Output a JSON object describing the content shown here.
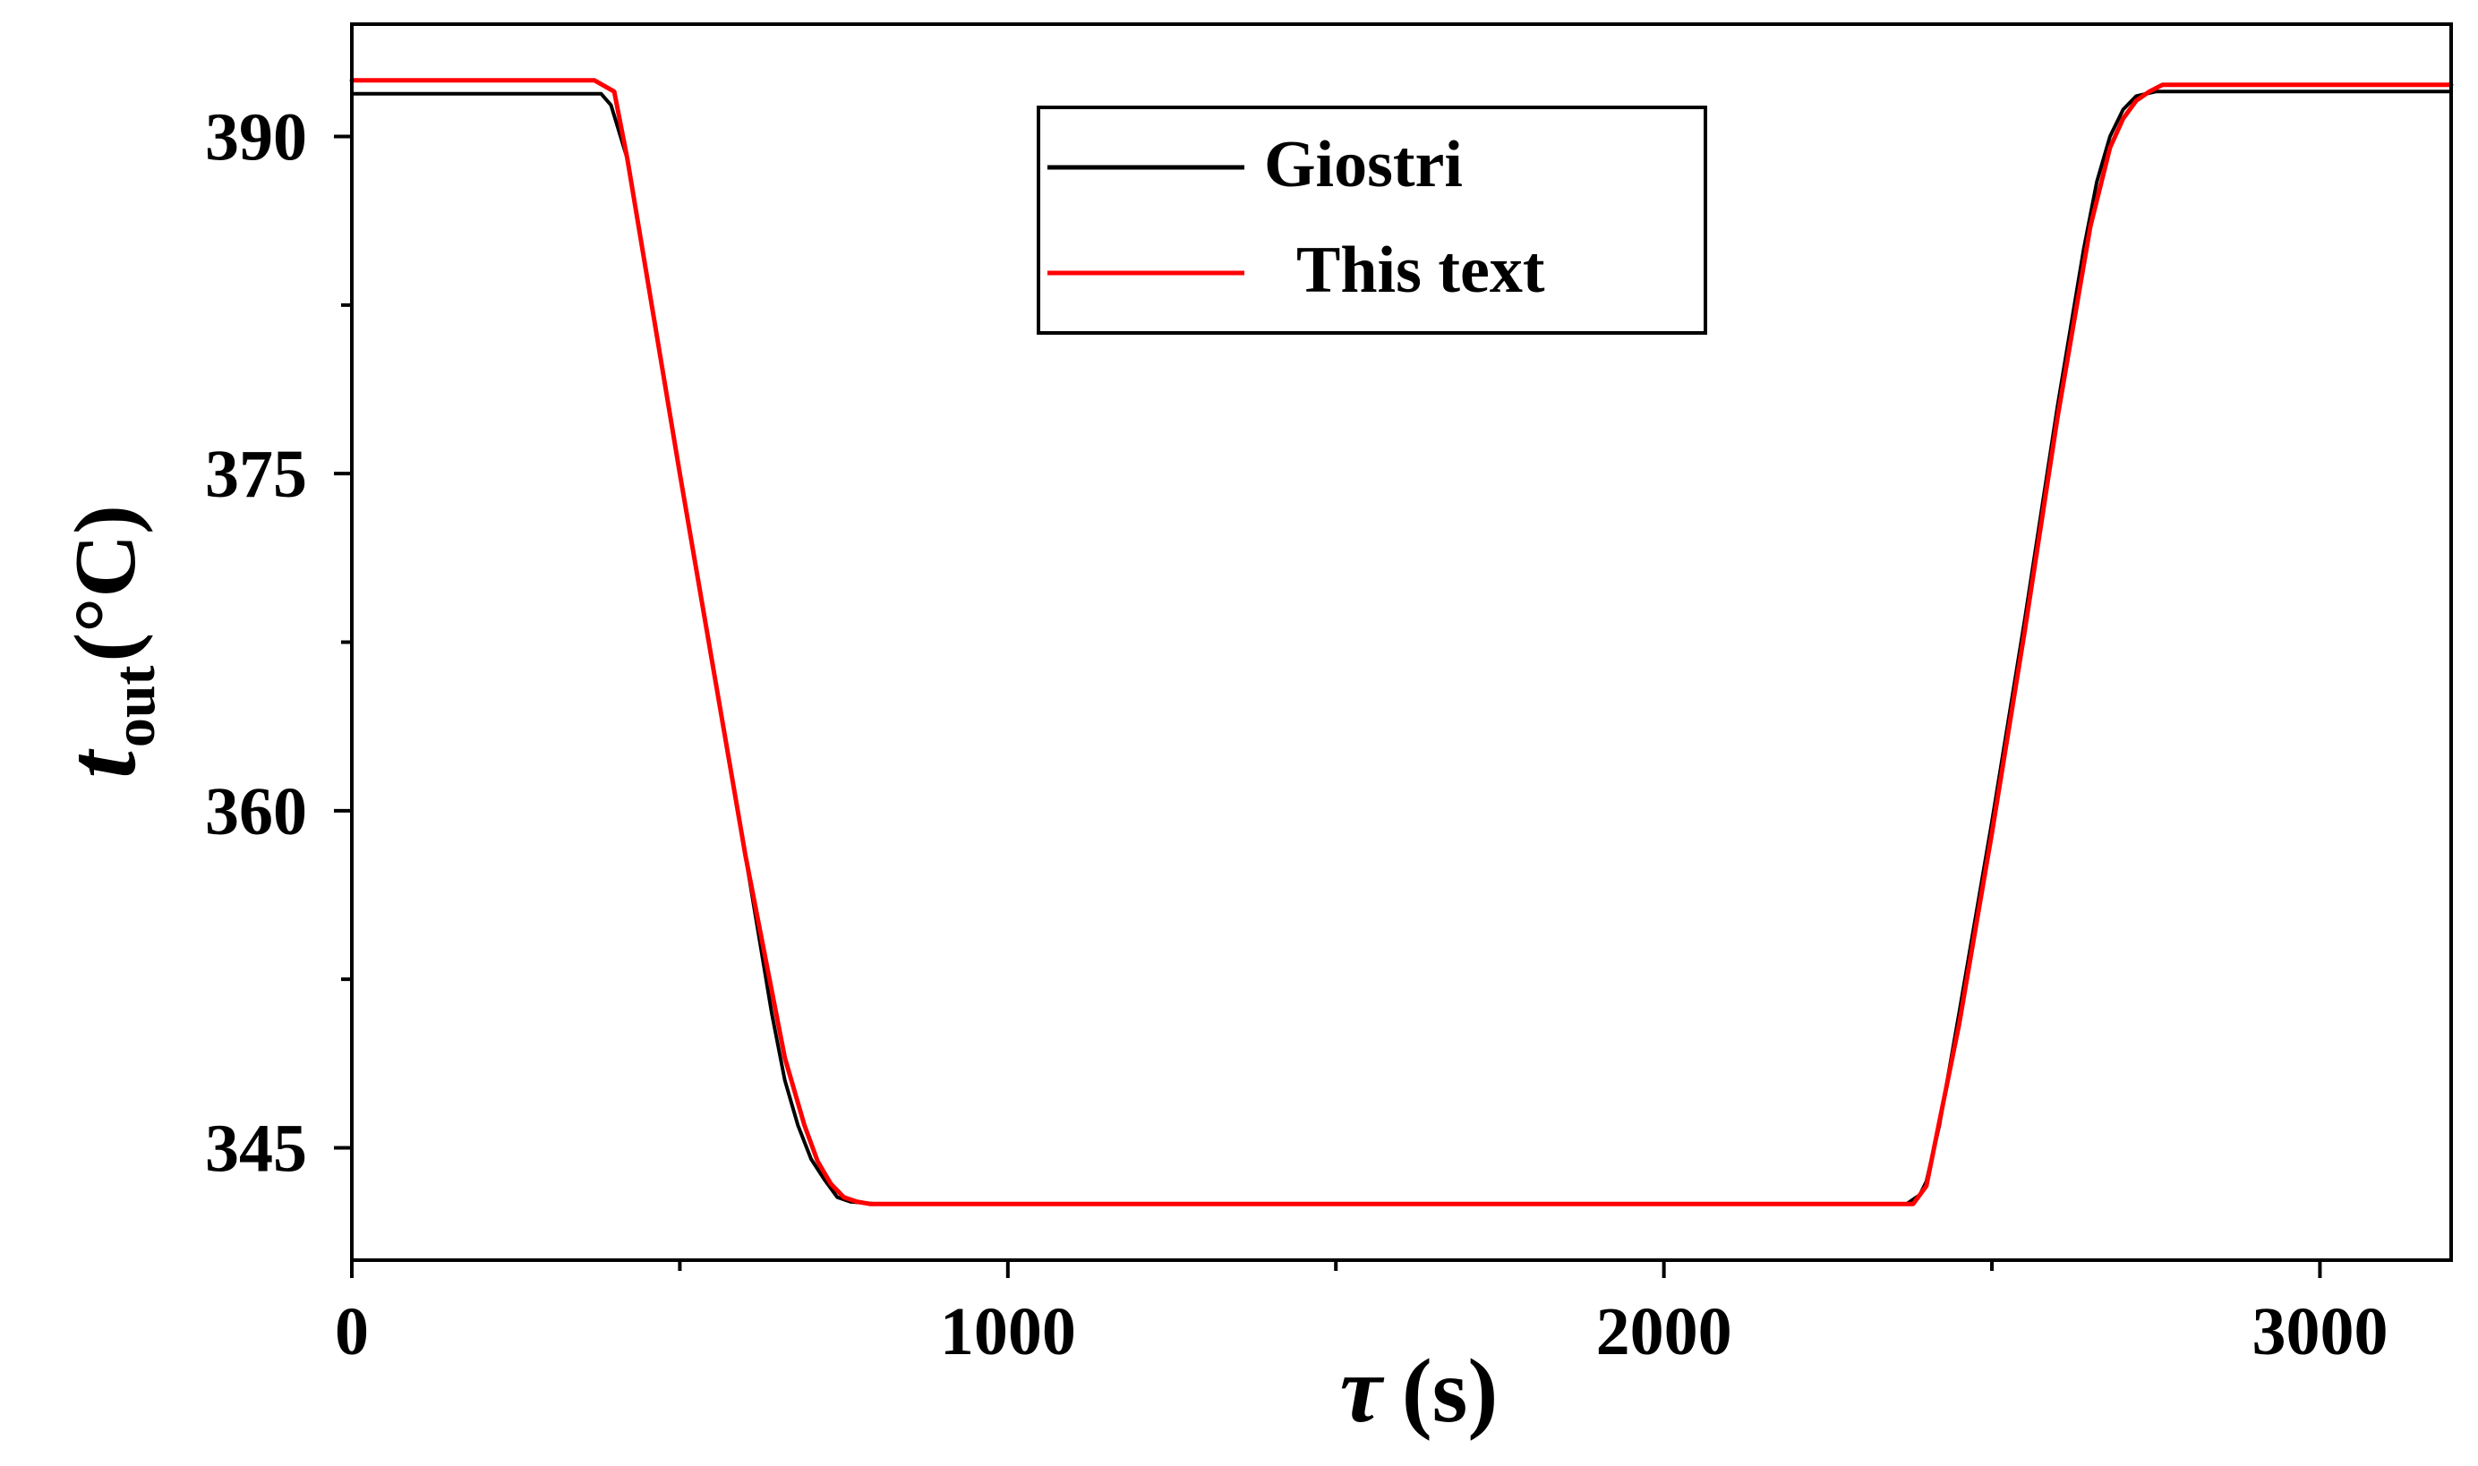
{
  "chart_data": {
    "type": "line",
    "title": "",
    "xlabel": {
      "symbol": "τ",
      "unit": "(s)"
    },
    "ylabel": {
      "symbol": "t",
      "subscript": "out",
      "unit": "(°C)"
    },
    "xlim": [
      0,
      3200
    ],
    "ylim": [
      340,
      395
    ],
    "x_ticks_major": [
      0,
      1000,
      2000,
      3000
    ],
    "x_ticks_minor": [
      500,
      1500,
      2500
    ],
    "x_tick_labels": [
      "0",
      "1000",
      "2000",
      "3000"
    ],
    "y_ticks_major": [
      345,
      360,
      375,
      390
    ],
    "y_ticks_minor": [
      352.5,
      367.5,
      382.5
    ],
    "y_tick_labels": [
      "345",
      "360",
      "375",
      "390"
    ],
    "grid": false,
    "legend": {
      "position": "top-center",
      "entries": [
        "Giostri",
        "This text"
      ]
    },
    "series": [
      {
        "name": "Giostri",
        "color": "#000000",
        "x": [
          0,
          380,
          395,
          420,
          500,
          600,
          640,
          660,
          680,
          700,
          720,
          740,
          760,
          800,
          1500,
          2300,
          2370,
          2390,
          2400,
          2420,
          2450,
          2500,
          2550,
          2600,
          2640,
          2660,
          2680,
          2700,
          2720,
          2750,
          2800,
          3200
        ],
        "y": [
          391.9,
          391.9,
          391.4,
          389.0,
          375.0,
          358.0,
          351.0,
          348.0,
          346.0,
          344.5,
          343.6,
          342.8,
          342.6,
          342.5,
          342.5,
          342.5,
          342.5,
          342.9,
          343.5,
          346.0,
          351.0,
          359.5,
          368.5,
          378.0,
          385.0,
          388.0,
          390.0,
          391.2,
          391.8,
          392.0,
          392.0,
          392.0
        ]
      },
      {
        "name": "This text",
        "color": "#ff0000",
        "x": [
          0,
          370,
          400,
          420,
          500,
          600,
          660,
          690,
          710,
          730,
          750,
          770,
          790,
          1000,
          2000,
          2380,
          2400,
          2450,
          2500,
          2550,
          2600,
          2650,
          2680,
          2700,
          2720,
          2740,
          2760,
          2800,
          3200
        ],
        "y": [
          392.5,
          392.5,
          392.0,
          389.0,
          375.0,
          358.0,
          349.0,
          346.0,
          344.4,
          343.4,
          342.8,
          342.6,
          342.5,
          342.5,
          342.5,
          342.5,
          343.3,
          350.5,
          359.0,
          368.0,
          377.5,
          386.0,
          389.5,
          390.8,
          391.6,
          392.0,
          392.3,
          392.3,
          392.3
        ]
      }
    ]
  }
}
